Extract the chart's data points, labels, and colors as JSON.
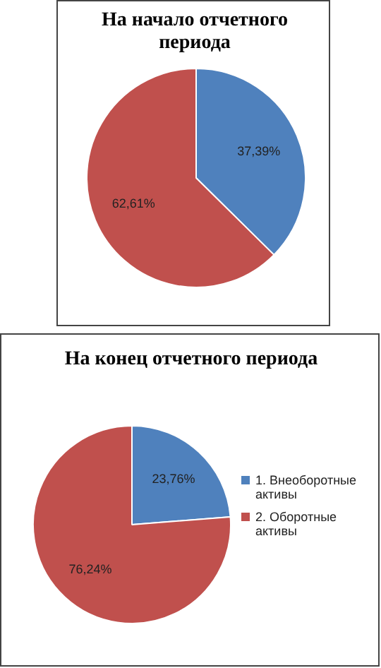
{
  "chart_data": [
    {
      "type": "pie",
      "title": "На начало отчетного периода",
      "categories": [
        null,
        null
      ],
      "values": [
        37.39,
        62.61
      ],
      "colors": [
        "#4f81bd",
        "#c0504d"
      ],
      "value_labels": [
        "37,39%",
        "62,61%"
      ],
      "legend": false
    },
    {
      "type": "pie",
      "title": "На конец отчетного периода",
      "categories": [
        "1. Внеоборотные активы",
        "2. Оборотные активы"
      ],
      "values": [
        23.76,
        76.24
      ],
      "colors": [
        "#4f81bd",
        "#c0504d"
      ],
      "value_labels": [
        "23,76%",
        "76,24%"
      ],
      "legend": "right"
    }
  ]
}
